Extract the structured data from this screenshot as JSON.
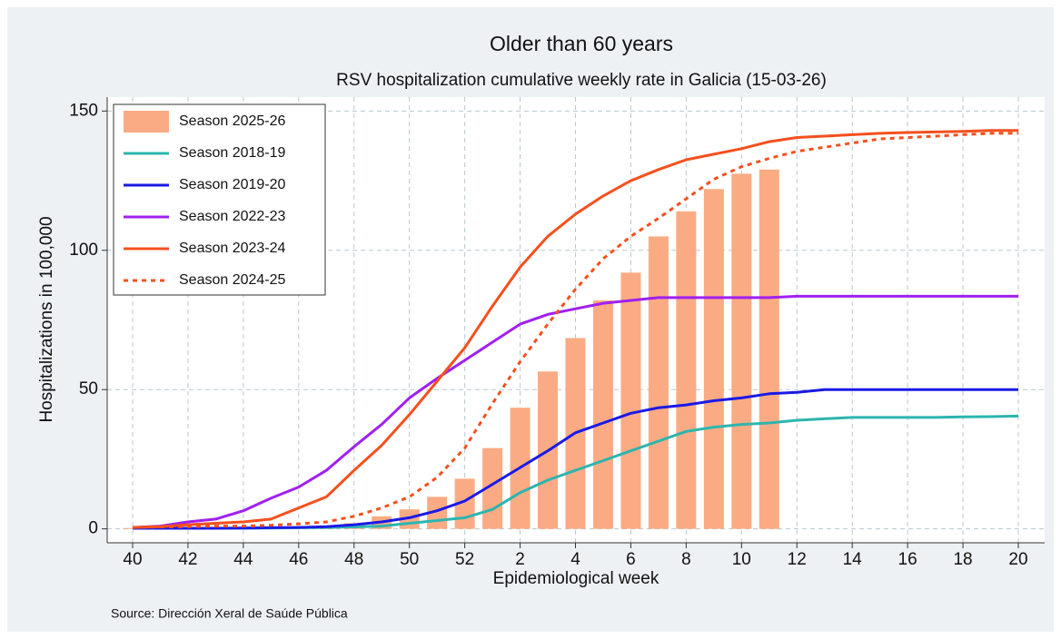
{
  "chart_data": {
    "type": "line",
    "title": "Older than 60 years",
    "subtitle": "RSV hospitalization cumulative weekly rate in Galicia (15-03-26)",
    "xlabel": "Epidemiological week",
    "ylabel": "Hospitalizations in 100,000",
    "source": "Source: Dirección Xeral de Saúde Pública",
    "categories": [
      "40",
      null,
      "42",
      null,
      "44",
      null,
      "46",
      null,
      "48",
      null,
      "50",
      null,
      "52",
      null,
      "2",
      null,
      "4",
      null,
      "6",
      null,
      "8",
      null,
      "10",
      null,
      "12",
      null,
      "14",
      null,
      "16",
      null,
      "18",
      null,
      "20"
    ],
    "ylim": [
      -5,
      155
    ],
    "yticks": [
      0,
      50,
      100,
      150
    ],
    "grid": true,
    "legend": "upper left",
    "series": [
      {
        "name": "Season 2025-26",
        "type": "bar",
        "color": "#fbab84",
        "values": [
          0.3,
          0.3,
          0.3,
          0.3,
          0.3,
          0.5,
          0.5,
          1,
          2,
          4.5,
          7,
          11.5,
          18,
          29,
          43.5,
          56.5,
          68.5,
          82,
          92,
          105,
          114,
          122,
          127.5,
          129,
          null,
          null,
          null,
          null,
          null,
          null,
          null,
          null,
          null
        ]
      },
      {
        "name": "Season 2018-19",
        "type": "line",
        "color": "#2db5ae",
        "values": [
          0.2,
          0.2,
          0.2,
          0.2,
          0.2,
          0.3,
          0.4,
          0.5,
          0.7,
          1,
          2,
          3,
          4,
          7,
          13,
          17.5,
          21,
          24.5,
          28,
          31.5,
          35,
          36.5,
          37.5,
          38,
          39,
          39.5,
          40,
          40,
          40,
          40,
          40.2,
          40.3,
          40.5
        ]
      },
      {
        "name": "Season 2019-20",
        "type": "line",
        "color": "#1a1ae6",
        "values": [
          0.2,
          0.2,
          0.2,
          0.2,
          0.3,
          0.4,
          0.5,
          0.8,
          1.5,
          2.5,
          4,
          6.5,
          10,
          16,
          22,
          28,
          34.5,
          38,
          41.5,
          43.5,
          44.5,
          46,
          47,
          48.5,
          49,
          50,
          50,
          50,
          50,
          50,
          50,
          50,
          50
        ]
      },
      {
        "name": "Season 2022-23",
        "type": "line",
        "color": "#a020f0",
        "values": [
          0.5,
          1,
          2.5,
          3.5,
          6.5,
          11,
          15,
          21,
          29.5,
          37.5,
          47,
          54,
          60.5,
          67,
          73.5,
          77,
          79,
          81,
          82,
          83,
          83,
          83,
          83,
          83,
          83.5,
          83.5,
          83.5,
          83.5,
          83.5,
          83.5,
          83.5,
          83.5,
          83.5
        ]
      },
      {
        "name": "Season 2023-24",
        "type": "line",
        "color": "#f5501e",
        "values": [
          0.5,
          0.8,
          1.5,
          2,
          2.5,
          3.5,
          7.5,
          11.5,
          21,
          30,
          41,
          53,
          65,
          80,
          94,
          105,
          113,
          119.5,
          125,
          129,
          132.5,
          134.5,
          136.5,
          139,
          140.5,
          141,
          141.5,
          142,
          142.3,
          142.5,
          142.7,
          143,
          143
        ]
      },
      {
        "name": "Season 2024-25",
        "type": "line",
        "dash": "dotted",
        "color": "#f5501e",
        "values": [
          0.5,
          0.7,
          0.8,
          1,
          1,
          1.3,
          1.8,
          2.5,
          4.5,
          7.5,
          11.5,
          18.5,
          29,
          45,
          60,
          73.5,
          86,
          97,
          105,
          111.5,
          118.5,
          125.5,
          130,
          133,
          135.5,
          137,
          138.5,
          140,
          140.5,
          141,
          141.5,
          142,
          142
        ]
      }
    ]
  }
}
